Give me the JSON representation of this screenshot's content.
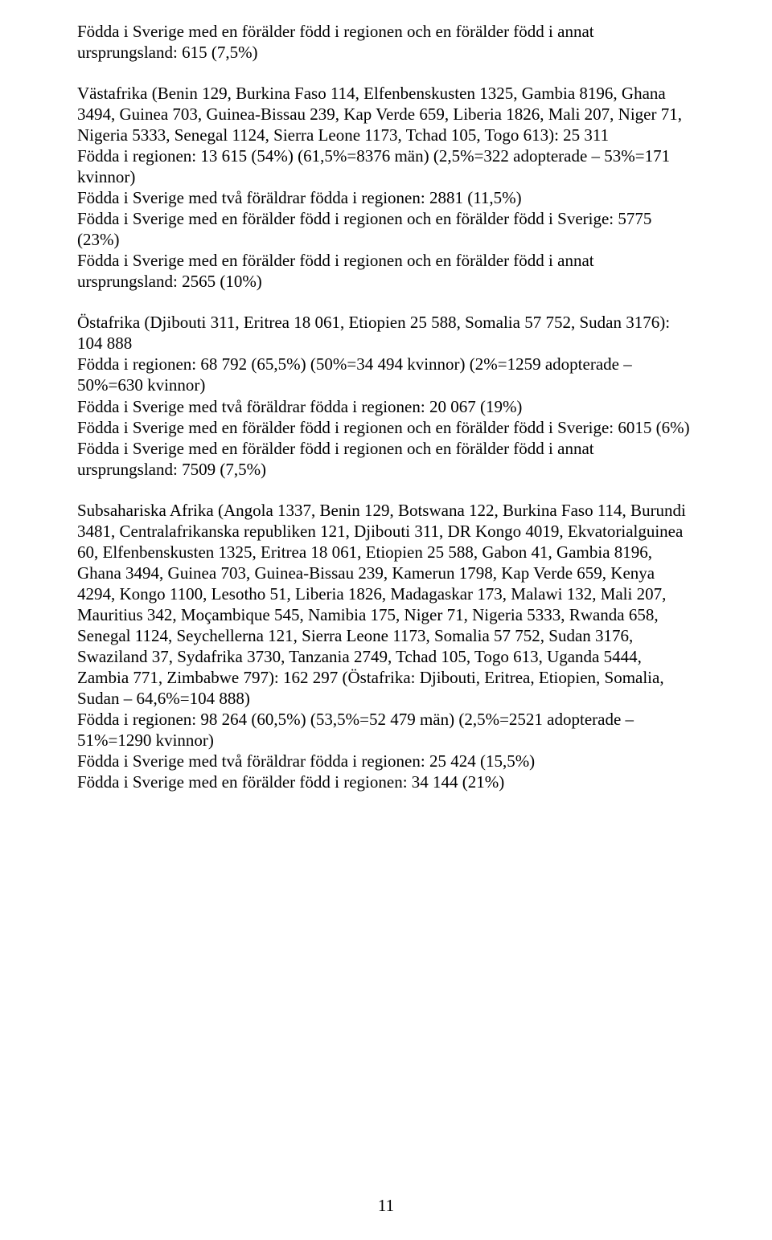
{
  "paragraphs": [
    "Födda i Sverige med en förälder född i regionen och en förälder född i annat ursprungsland: 615 (7,5%)",
    "Västafrika (Benin 129, Burkina Faso 114, Elfenbenskusten 1325, Gambia 8196, Ghana 3494, Guinea 703, Guinea-Bissau 239, Kap Verde 659, Liberia 1826, Mali 207, Niger 71, Nigeria 5333, Senegal 1124, Sierra Leone 1173, Tchad 105, Togo 613): 25 311\nFödda i regionen: 13 615 (54%) (61,5%=8376 män) (2,5%=322 adopterade – 53%=171 kvinnor)\nFödda i Sverige med två föräldrar födda i regionen: 2881 (11,5%)\nFödda i Sverige med en förälder född i regionen och en förälder född i Sverige: 5775 (23%)\nFödda i Sverige med en förälder född i regionen och en förälder född i annat ursprungsland: 2565 (10%)",
    "Östafrika (Djibouti 311, Eritrea 18 061, Etiopien 25 588, Somalia 57 752, Sudan 3176): 104 888\nFödda i regionen: 68 792 (65,5%) (50%=34 494 kvinnor) (2%=1259 adopterade – 50%=630 kvinnor)\nFödda i Sverige med två föräldrar födda i regionen: 20 067 (19%)\nFödda i Sverige med en förälder född i regionen och en förälder född i Sverige: 6015 (6%)\nFödda i Sverige med en förälder född i regionen och en förälder född i annat ursprungsland: 7509 (7,5%)",
    "Subsahariska Afrika (Angola 1337, Benin 129, Botswana 122, Burkina Faso 114, Burundi 3481, Centralafrikanska republiken 121, Djibouti 311, DR Kongo 4019, Ekvatorialguinea 60, Elfenbenskusten 1325, Eritrea 18 061, Etiopien 25 588, Gabon 41, Gambia 8196, Ghana 3494, Guinea 703, Guinea-Bissau 239, Kamerun 1798, Kap Verde 659, Kenya 4294, Kongo 1100, Lesotho 51, Liberia 1826, Madagaskar 173, Malawi 132, Mali 207, Mauritius 342, Moçambique 545, Namibia 175, Niger 71, Nigeria 5333, Rwanda 658, Senegal 1124, Seychellerna 121, Sierra Leone 1173, Somalia 57 752, Sudan 3176, Swaziland 37, Sydafrika 3730, Tanzania 2749, Tchad 105, Togo 613, Uganda 5444, Zambia 771, Zimbabwe 797): 162 297 (Östafrika: Djibouti, Eritrea, Etiopien, Somalia, Sudan – 64,6%=104 888)\nFödda i regionen: 98 264 (60,5%) (53,5%=52 479 män) (2,5%=2521 adopterade – 51%=1290 kvinnor)\nFödda i Sverige med två föräldrar födda i regionen: 25 424 (15,5%)\nFödda i Sverige med en förälder född i regionen: 34 144 (21%)"
  ],
  "page_number": "11"
}
